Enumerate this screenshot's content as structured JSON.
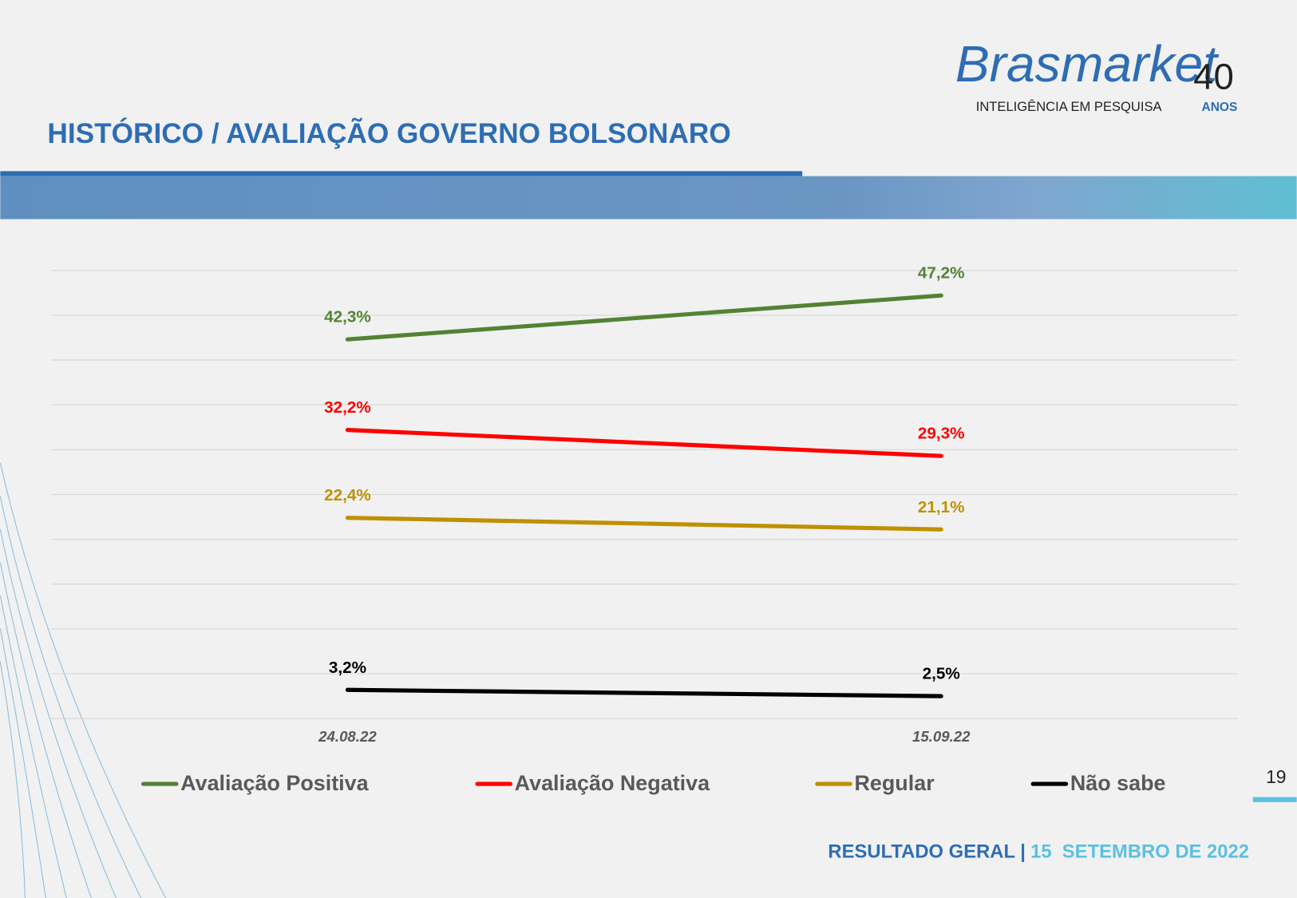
{
  "header": {
    "logo": "Brasmarket",
    "logo_years": "40",
    "logo_years_word": "ANOS",
    "tagline": "INTELIGÊNCIA EM PESQUISA",
    "page_number": "19"
  },
  "footer": {
    "label": "RESULTADO GERAL |",
    "date": "15  SETEMBRO DE 2022"
  },
  "chart_data": {
    "type": "line",
    "title": "HISTÓRICO / AVALIAÇÃO GOVERNO BOLSONARO",
    "categories": [
      "24.08.22",
      "15.09.22"
    ],
    "series": [
      {
        "name": "Avaliação Positiva",
        "color": "#548235",
        "values": [
          42.3,
          47.2
        ],
        "value_labels": [
          "42,3%",
          "47,2%"
        ]
      },
      {
        "name": "Avaliação Negativa",
        "color": "#ff0000",
        "values": [
          32.2,
          29.3
        ],
        "value_labels": [
          "32,2%",
          "29,3%"
        ]
      },
      {
        "name": "Regular",
        "color": "#bf9000",
        "values": [
          22.4,
          21.1
        ],
        "value_labels": [
          "22,4%",
          "21,1%"
        ]
      },
      {
        "name": "Não sabe",
        "color": "#000000",
        "values": [
          3.2,
          2.5
        ],
        "value_labels": [
          "3,2%",
          "2,5%"
        ]
      }
    ],
    "ylim": [
      0,
      50
    ],
    "yticks": [
      0,
      5,
      10,
      15,
      20,
      25,
      30,
      35,
      40,
      45,
      50
    ],
    "grid": true,
    "legend": "bottom"
  }
}
